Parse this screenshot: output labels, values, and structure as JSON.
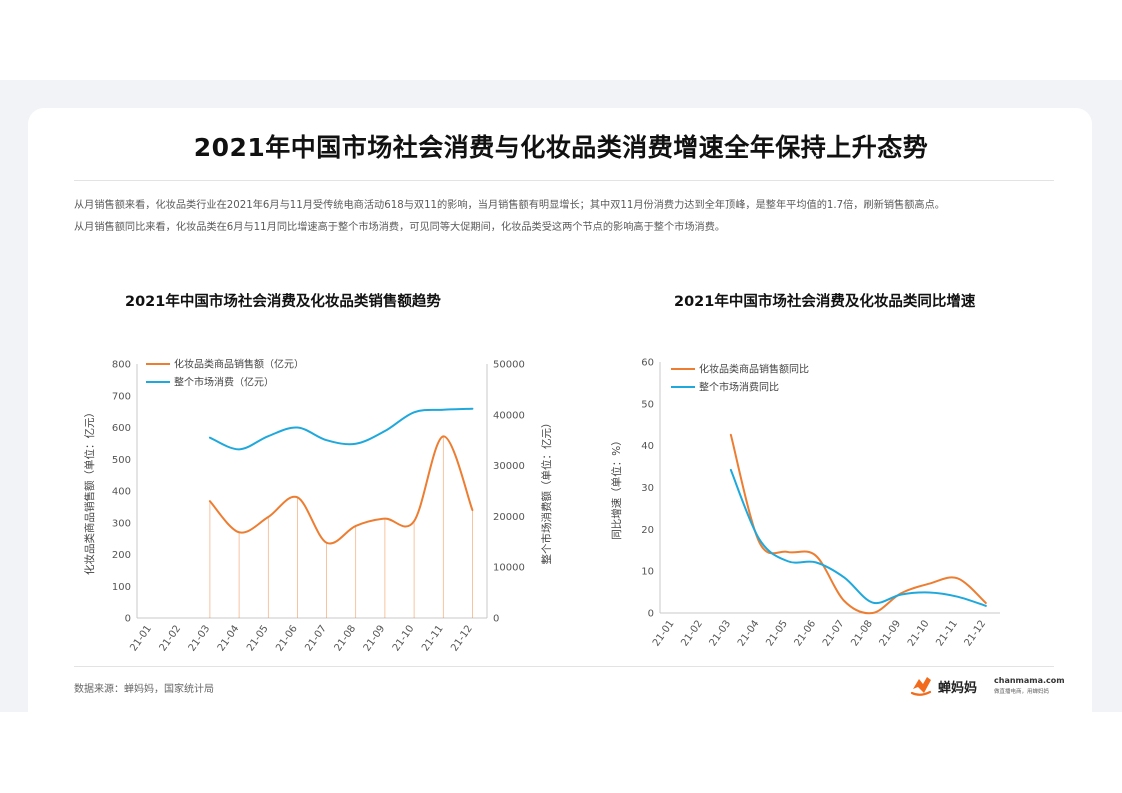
{
  "page": {
    "title": "2021年中国市场社会消费与化妆品类消费增速全年保持上升态势",
    "description": [
      "从月销售额来看，化妆品类行业在2021年6月与11月受传统电商活动618与双11的影响，当月销售额有明显增长；其中双11月份消费力达到全年顶峰，是整年平均值的1.7倍，刷新销售额高点。",
      "从月销售额同比来看，化妆品类在6月与11月同比增速高于整个市场消费，可见同等大促期间，化妆品类受这两个节点的影响高于整个市场消费。"
    ],
    "source": "数据来源：蝉妈妈，国家统计局",
    "brand": {
      "name": "蝉妈妈",
      "domain": "chanmama.com",
      "slogan": "做直播电商，用蝉妈妈"
    },
    "colors": {
      "orange": "#ED7D31",
      "blue": "#1FA8DC",
      "brand_orange": "#F26B1D"
    }
  },
  "chart_data": [
    {
      "type": "line",
      "title": "2021年中国市场社会消费及化妆品类销售额趋势",
      "categories": [
        "21-01",
        "21-02",
        "21-03",
        "21-04",
        "21-05",
        "21-06",
        "21-07",
        "21-08",
        "21-09",
        "21-10",
        "21-11",
        "21-12"
      ],
      "ylabel": "化妆品类商品销售额（单位：亿元）",
      "y2label": "整个市场消费额（单位：亿元）",
      "ylim": [
        0,
        800
      ],
      "y2lim": [
        0,
        50000
      ],
      "yticks": [
        "0",
        "100",
        "200",
        "300",
        "400",
        "500",
        "600",
        "700",
        "800"
      ],
      "y2ticks": [
        "0",
        "10000",
        "20000",
        "30000",
        "40000",
        "50000"
      ],
      "legend_position": "top-left",
      "series": [
        {
          "name": "化妆品类商品销售额（亿元）",
          "axis": "left",
          "color": "#ED7D31",
          "values": [
            null,
            null,
            368,
            270,
            318,
            380,
            237,
            290,
            313,
            305,
            572,
            340
          ]
        },
        {
          "name": "整个市场消费（亿元）",
          "axis": "right",
          "color": "#1FA8DC",
          "values": [
            null,
            null,
            35500,
            33200,
            35800,
            37500,
            35000,
            34300,
            36800,
            40500,
            41000,
            41200
          ]
        }
      ]
    },
    {
      "type": "line",
      "title": "2021年中国市场社会消费及化妆品类同比增速",
      "categories": [
        "21-01",
        "21-02",
        "21-03",
        "21-04",
        "21-05",
        "21-06",
        "21-07",
        "21-08",
        "21-09",
        "21-10",
        "21-11",
        "21-12"
      ],
      "ylabel": "同比增速（单位：%）",
      "ylim": [
        0,
        60
      ],
      "yticks": [
        "0",
        "10",
        "20",
        "30",
        "40",
        "50",
        "60"
      ],
      "legend_position": "top-left",
      "series": [
        {
          "name": "化妆品类商品销售额同比",
          "color": "#ED7D31",
          "values": [
            null,
            null,
            42.6,
            17.0,
            14.6,
            13.7,
            2.9,
            0.0,
            4.7,
            7.0,
            8.3,
            2.4
          ]
        },
        {
          "name": "整个市场消费同比",
          "color": "#1FA8DC",
          "values": [
            null,
            null,
            34.2,
            17.7,
            12.4,
            12.1,
            8.5,
            2.5,
            4.4,
            4.9,
            3.9,
            1.7
          ]
        }
      ]
    }
  ]
}
